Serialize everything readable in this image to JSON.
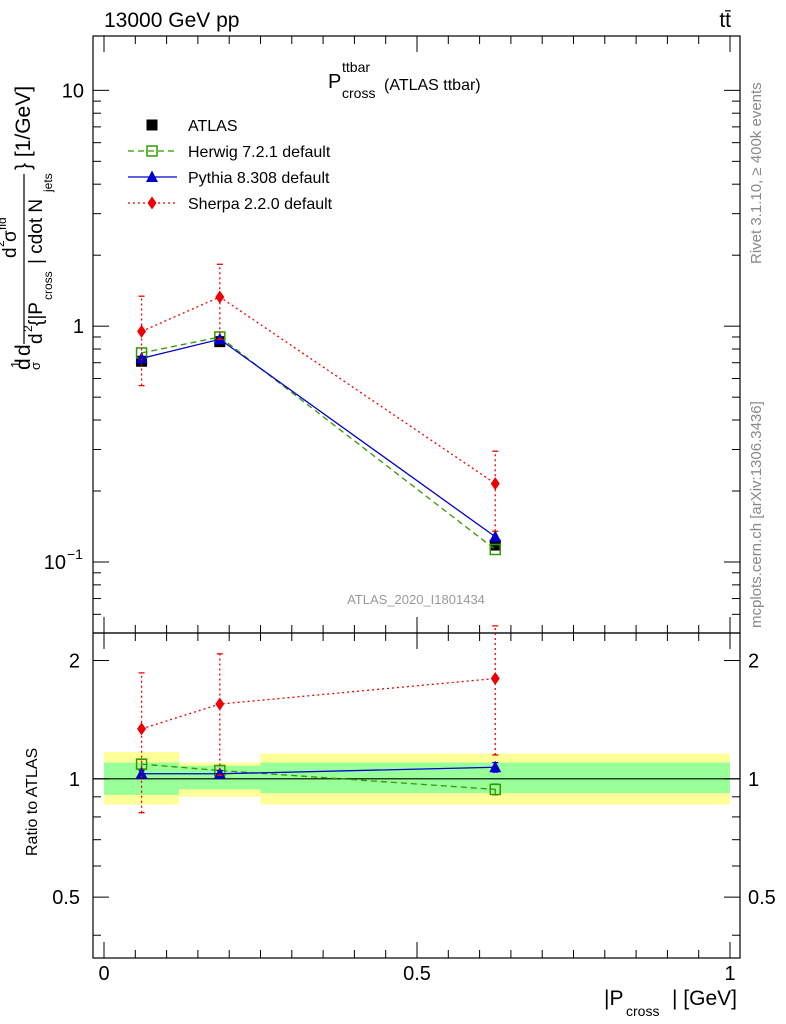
{
  "header": {
    "energy_label": "13000 GeV pp",
    "process_label": "tt̄"
  },
  "side": {
    "rivet_label": "Rivet 3.1.10, ≥ 400k events",
    "mcplots_label": "mcplots.cern.ch [arXiv:1306.3436]"
  },
  "main_plot": {
    "title_main": "P",
    "title_sup": "ttbar",
    "title_sub": "cross",
    "title_suffix": "(ATLAS ttbar)",
    "analysis_tag": "ATLAS_2020_I1801434",
    "ylabel_unit": "} [1/GeV]",
    "ylabel_part1": "d",
    "ylabel_part2": "σ",
    "ylabel_mid": "d",
    "ylabel_d2": "d",
    "ylabel_frac_num": "d",
    "ylabel_sup2": "2",
    "ylabel_sigma_fid": "σ",
    "ylabel_fid": "fid",
    "ylabel_den": "{|P",
    "ylabel_den_sub": "cross",
    "ylabel_den_rest": "| cdot N",
    "ylabel_den_sub2": "jets",
    "y_tick_labels": [
      "10",
      "1",
      "10"
    ],
    "y_tick_exp": "−1"
  },
  "ratio_plot": {
    "ylabel": "Ratio to ATLAS",
    "y_tick_labels": [
      "2",
      "1",
      "0.5"
    ]
  },
  "x_axis": {
    "label_main": "|P",
    "label_sub": "cross",
    "label_rest": "| [GeV]",
    "tick_labels": [
      "0",
      "0.5",
      "1"
    ]
  },
  "legend": [
    {
      "label": "ATLAS",
      "color": "#000000",
      "marker": "square-filled",
      "line": "none"
    },
    {
      "label": "Herwig 7.2.1 default",
      "color": "#339900",
      "marker": "square-open",
      "line": "dashed"
    },
    {
      "label": "Pythia 8.308 default",
      "color": "#0000cc",
      "marker": "triangle-filled",
      "line": "solid"
    },
    {
      "label": "Sherpa 2.2.0 default",
      "color": "#ee0000",
      "marker": "diamond-filled",
      "line": "dotted"
    }
  ],
  "chart_data": {
    "type": "scatter",
    "x_label": "|P_cross| [GeV]",
    "xlim": [
      0,
      1
    ],
    "main_ylim": [
      0.05,
      17.0
    ],
    "main_yscale": "log",
    "ratio_ylim": [
      0.35,
      2.35
    ],
    "ratio_yscale": "log",
    "bins": [
      [
        0.0,
        0.12
      ],
      [
        0.12,
        0.25
      ],
      [
        0.25,
        1.0
      ]
    ],
    "x": [
      0.06,
      0.185,
      0.625
    ],
    "series": [
      {
        "name": "ATLAS",
        "values": [
          0.71,
          0.86,
          0.118
        ],
        "err_lo": [
          0.0,
          0.0,
          0.0
        ],
        "err_hi": [
          0.0,
          0.0,
          0.0
        ]
      },
      {
        "name": "Herwig 7.2.1 default",
        "values": [
          0.77,
          0.9,
          0.113
        ],
        "err_lo": [
          0.0,
          0.0,
          0.0
        ],
        "err_hi": [
          0.0,
          0.0,
          0.0
        ]
      },
      {
        "name": "Pythia 8.308 default",
        "values": [
          0.73,
          0.88,
          0.128
        ],
        "err_lo": [
          0.0,
          0.0,
          0.0
        ],
        "err_hi": [
          0.0,
          0.0,
          0.0
        ]
      },
      {
        "name": "Sherpa 2.2.0 default",
        "values": [
          0.95,
          1.33,
          0.215
        ],
        "err_lo": [
          0.39,
          0.45,
          0.08
        ],
        "err_hi": [
          0.39,
          0.5,
          0.08
        ]
      }
    ],
    "ratio_series": [
      {
        "name": "Herwig 7.2.1 default",
        "values": [
          1.09,
          1.05,
          0.94
        ],
        "err_lo": [
          0.03,
          0.03,
          0.03
        ],
        "err_hi": [
          0.03,
          0.03,
          0.03
        ]
      },
      {
        "name": "Pythia 8.308 default",
        "values": [
          1.03,
          1.03,
          1.07
        ],
        "err_lo": [
          0.02,
          0.02,
          0.03
        ],
        "err_hi": [
          0.02,
          0.02,
          0.03
        ]
      },
      {
        "name": "Sherpa 2.2.0 default",
        "values": [
          1.34,
          1.55,
          1.8
        ],
        "err_lo": [
          0.52,
          0.53,
          0.65
        ],
        "err_hi": [
          0.52,
          0.53,
          0.65
        ]
      }
    ],
    "ratio_bands": {
      "inner": [
        [
          0.91,
          1.1
        ],
        [
          0.94,
          1.08
        ],
        [
          0.92,
          1.1
        ]
      ],
      "outer": [
        [
          0.86,
          1.17
        ],
        [
          0.9,
          1.1
        ],
        [
          0.86,
          1.16
        ]
      ]
    }
  }
}
